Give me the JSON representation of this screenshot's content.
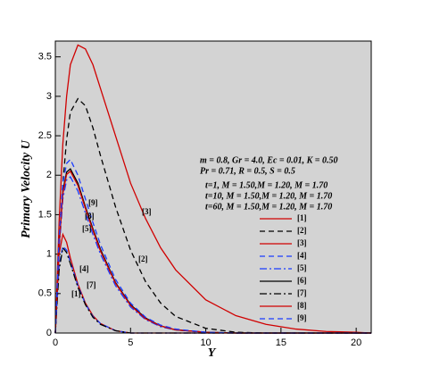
{
  "chart_data": {
    "type": "line",
    "xlabel": "Y",
    "ylabel": "Primary Velocity U",
    "notes": [
      "m = 0.8, Gr = 4.0, Ec = 0.01, K = 0.50",
      "Pr = 0.71, R = 0.5, S = 0.5",
      "t=1,  M = 1.50,M = 1.20, M = 1.70",
      "t=10, M = 1.50,M = 1.20, M = 1.70",
      "t=60, M = 1.50,M = 1.20, M = 1.70"
    ],
    "x": [
      0,
      0.25,
      0.5,
      0.75,
      1,
      1.5,
      2,
      2.5,
      3,
      4,
      5,
      6,
      7,
      8,
      10,
      12,
      14,
      16,
      18,
      20,
      21
    ],
    "series": [
      {
        "name": "[1]",
        "color": "#d00000",
        "dash": "solid",
        "values": [
          0,
          1.0,
          1.25,
          1.15,
          0.95,
          0.62,
          0.38,
          0.22,
          0.12,
          0.03,
          0,
          0,
          0,
          0,
          0,
          0,
          0,
          0,
          0,
          0,
          0
        ]
      },
      {
        "name": "[2]",
        "color": "#000000",
        "dash": "dashed",
        "values": [
          0,
          1.1,
          1.9,
          2.45,
          2.8,
          2.97,
          2.88,
          2.6,
          2.25,
          1.6,
          1.05,
          0.65,
          0.38,
          0.21,
          0.06,
          0.01,
          0,
          0,
          0,
          0,
          0
        ]
      },
      {
        "name": "[3]",
        "color": "#d00000",
        "dash": "solid",
        "values": [
          0,
          1.4,
          2.4,
          3.0,
          3.4,
          3.65,
          3.6,
          3.4,
          3.1,
          2.5,
          1.9,
          1.45,
          1.08,
          0.8,
          0.42,
          0.22,
          0.11,
          0.05,
          0.02,
          0.01,
          0
        ]
      },
      {
        "name": "[4]",
        "color": "#1a3cff",
        "dash": "dashed",
        "values": [
          0,
          0.85,
          1.1,
          1.05,
          0.9,
          0.6,
          0.37,
          0.21,
          0.12,
          0.03,
          0,
          0,
          0,
          0,
          0,
          0,
          0,
          0,
          0,
          0,
          0
        ]
      },
      {
        "name": "[5]",
        "color": "#1a3cff",
        "dash": "dashdot",
        "values": [
          0,
          1.05,
          1.7,
          1.94,
          1.98,
          1.8,
          1.52,
          1.25,
          1.0,
          0.6,
          0.33,
          0.17,
          0.08,
          0.04,
          0.01,
          0,
          0,
          0,
          0,
          0,
          0
        ]
      },
      {
        "name": "[6]",
        "color": "#000000",
        "dash": "solid",
        "values": [
          0,
          1.12,
          1.8,
          2.04,
          2.08,
          1.9,
          1.6,
          1.32,
          1.06,
          0.64,
          0.36,
          0.19,
          0.09,
          0.04,
          0.01,
          0,
          0,
          0,
          0,
          0,
          0
        ]
      },
      {
        "name": "[7]",
        "color": "#000000",
        "dash": "dashdot",
        "values": [
          0,
          0.8,
          1.08,
          1.02,
          0.88,
          0.58,
          0.36,
          0.2,
          0.11,
          0.03,
          0,
          0,
          0,
          0,
          0,
          0,
          0,
          0,
          0,
          0,
          0
        ]
      },
      {
        "name": "[8]",
        "color": "#d00000",
        "dash": "solid",
        "values": [
          0,
          1.1,
          1.77,
          2.01,
          2.05,
          1.87,
          1.58,
          1.3,
          1.04,
          0.63,
          0.35,
          0.18,
          0.09,
          0.04,
          0.01,
          0,
          0,
          0,
          0,
          0,
          0
        ]
      },
      {
        "name": "[9]",
        "color": "#1a3cff",
        "dash": "dashed",
        "values": [
          0,
          1.2,
          1.9,
          2.15,
          2.2,
          2.0,
          1.7,
          1.4,
          1.12,
          0.68,
          0.38,
          0.2,
          0.1,
          0.05,
          0.01,
          0,
          0,
          0,
          0,
          0,
          0
        ]
      }
    ],
    "xlim": [
      0,
      21
    ],
    "xticks": [
      0,
      5,
      10,
      15,
      20
    ],
    "ylim": [
      0,
      3.7
    ],
    "yticks": [
      0,
      0.5,
      1,
      1.5,
      2,
      2.5,
      3,
      3.5
    ],
    "background": "#d3d3d3"
  }
}
